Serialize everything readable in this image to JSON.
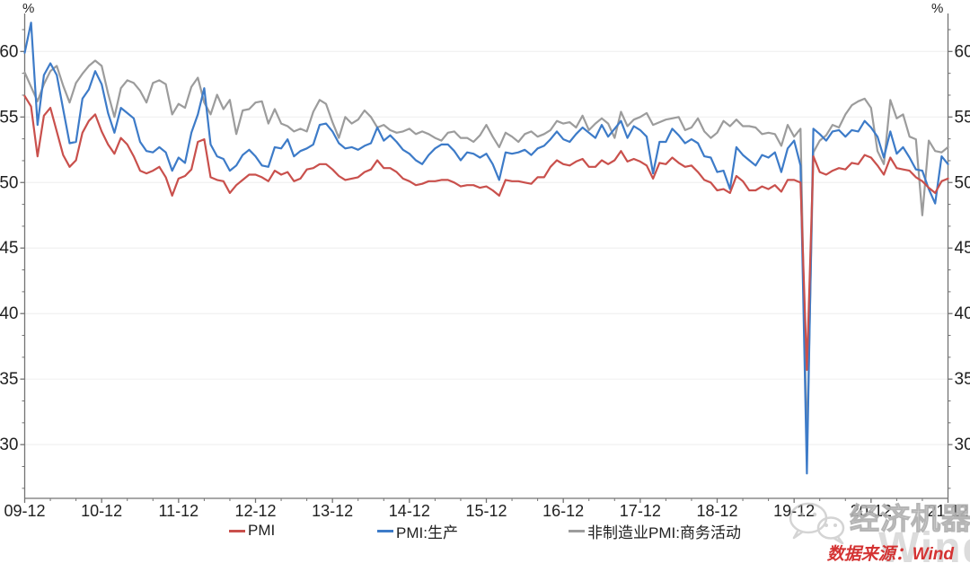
{
  "chart_data": {
    "type": "line",
    "unit": "%",
    "x_start": "2009-12",
    "x_end": "2021-12",
    "x_frequency": "monthly",
    "x_tick_labels": [
      "09-12",
      "10-12",
      "11-12",
      "12-12",
      "13-12",
      "14-12",
      "15-12",
      "16-12",
      "17-12",
      "18-12",
      "19-12",
      "20-12",
      "21-12"
    ],
    "y_ticks": [
      30,
      35,
      40,
      45,
      50,
      55,
      60
    ],
    "ylim": [
      25.9,
      62.9
    ],
    "grid": "horizontal-major",
    "legend_position": "bottom",
    "axis_color": "#737373",
    "grid_color": "#f0f0f0",
    "tick_label_color": "#1f1f1f",
    "series": [
      {
        "name": "PMI",
        "color": "#c9504c",
        "values": [
          56.6,
          55.8,
          52.0,
          55.1,
          55.7,
          53.9,
          52.1,
          51.2,
          51.7,
          53.8,
          54.7,
          55.2,
          53.9,
          52.9,
          52.2,
          53.4,
          52.9,
          52.0,
          50.9,
          50.7,
          50.9,
          51.2,
          50.4,
          49.0,
          50.3,
          50.5,
          51.0,
          53.1,
          53.3,
          50.4,
          50.2,
          50.1,
          49.2,
          49.8,
          50.2,
          50.6,
          50.6,
          50.4,
          50.1,
          50.9,
          50.6,
          50.8,
          50.1,
          50.3,
          51.0,
          51.1,
          51.4,
          51.4,
          51.0,
          50.5,
          50.2,
          50.3,
          50.4,
          50.8,
          51.0,
          51.7,
          51.1,
          51.1,
          50.8,
          50.3,
          50.1,
          49.8,
          49.9,
          50.1,
          50.1,
          50.2,
          50.2,
          50.0,
          49.7,
          49.8,
          49.8,
          49.6,
          49.7,
          49.4,
          49.0,
          50.2,
          50.1,
          50.1,
          50.0,
          49.9,
          50.4,
          50.4,
          51.2,
          51.7,
          51.4,
          51.3,
          51.6,
          51.8,
          51.2,
          51.2,
          51.7,
          51.4,
          51.7,
          52.4,
          51.6,
          51.8,
          51.6,
          51.3,
          50.3,
          51.5,
          51.4,
          51.9,
          51.5,
          51.2,
          51.3,
          50.8,
          50.2,
          50.0,
          49.4,
          49.5,
          49.2,
          50.5,
          50.1,
          49.4,
          49.4,
          49.7,
          49.5,
          49.8,
          49.3,
          50.2,
          50.2,
          50.0,
          35.7,
          52.0,
          50.8,
          50.6,
          50.9,
          51.1,
          51.0,
          51.5,
          51.4,
          52.1,
          51.9,
          51.3,
          50.6,
          51.9,
          51.1,
          51.0,
          50.9,
          50.4,
          50.1,
          49.6,
          49.2,
          50.1,
          50.3
        ]
      },
      {
        "name": "PMI:生产",
        "color": "#3d7bc8",
        "values": [
          59.9,
          62.2,
          54.4,
          58.2,
          59.1,
          58.2,
          55.6,
          53.0,
          53.1,
          56.4,
          57.1,
          58.5,
          57.5,
          55.3,
          53.8,
          55.7,
          55.3,
          54.9,
          53.1,
          52.4,
          52.3,
          52.7,
          52.3,
          50.9,
          51.9,
          51.5,
          53.8,
          55.2,
          57.2,
          52.9,
          52.0,
          51.8,
          50.9,
          51.3,
          52.1,
          52.5,
          52.0,
          51.3,
          51.2,
          52.7,
          52.6,
          53.3,
          52.0,
          52.4,
          52.6,
          52.9,
          54.4,
          54.5,
          53.9,
          53.0,
          52.6,
          52.7,
          52.5,
          52.8,
          53.0,
          54.2,
          53.2,
          53.6,
          53.1,
          52.5,
          52.2,
          51.7,
          51.4,
          52.1,
          52.6,
          52.9,
          52.9,
          52.4,
          51.7,
          52.3,
          52.2,
          51.9,
          52.2,
          51.4,
          50.2,
          52.3,
          52.2,
          52.3,
          52.5,
          52.1,
          52.6,
          52.8,
          53.3,
          53.9,
          53.3,
          53.1,
          53.7,
          54.2,
          53.8,
          53.4,
          54.4,
          53.5,
          54.1,
          54.7,
          53.4,
          54.3,
          54.0,
          53.5,
          50.7,
          53.1,
          53.1,
          54.1,
          53.6,
          53.0,
          53.3,
          53.0,
          52.0,
          51.9,
          50.8,
          50.9,
          49.5,
          52.7,
          52.1,
          51.7,
          51.3,
          52.1,
          51.9,
          52.3,
          50.8,
          52.6,
          53.2,
          51.3,
          27.8,
          54.1,
          53.7,
          53.2,
          53.9,
          54.0,
          53.5,
          54.0,
          53.9,
          54.7,
          54.2,
          53.5,
          51.9,
          53.9,
          52.2,
          52.7,
          51.9,
          51.0,
          50.9,
          49.5,
          48.4,
          52.0,
          51.4
        ]
      },
      {
        "name": "非制造业PMI:商务活动",
        "color": "#9c9c9c",
        "values": [
          58.4,
          57.3,
          56.2,
          57.5,
          58.5,
          58.9,
          57.4,
          56.1,
          57.6,
          58.3,
          58.9,
          59.3,
          58.9,
          56.8,
          55.0,
          57.2,
          57.8,
          57.6,
          57.0,
          56.1,
          57.6,
          57.8,
          57.5,
          55.2,
          56.0,
          55.7,
          57.3,
          58.0,
          56.1,
          55.2,
          56.7,
          55.6,
          56.3,
          53.7,
          55.5,
          55.6,
          56.1,
          56.2,
          54.5,
          55.6,
          54.5,
          54.3,
          53.9,
          54.1,
          53.9,
          55.4,
          56.3,
          56.0,
          54.6,
          53.4,
          55.0,
          54.5,
          54.8,
          55.5,
          55.0,
          54.2,
          54.4,
          54.0,
          53.8,
          53.9,
          54.1,
          53.7,
          53.9,
          53.7,
          53.4,
          53.2,
          53.8,
          53.9,
          53.4,
          53.4,
          53.1,
          53.6,
          54.4,
          53.5,
          52.7,
          53.8,
          53.5,
          53.1,
          53.7,
          53.9,
          53.5,
          53.7,
          54.0,
          54.7,
          54.5,
          54.6,
          54.2,
          55.1,
          54.0,
          54.5,
          54.9,
          54.5,
          53.4,
          55.4,
          54.3,
          54.8,
          55.0,
          55.3,
          54.4,
          54.6,
          54.8,
          54.9,
          55.0,
          54.0,
          54.2,
          54.9,
          53.9,
          53.4,
          53.8,
          54.7,
          54.3,
          54.8,
          54.3,
          54.3,
          54.2,
          53.7,
          53.8,
          53.7,
          52.8,
          54.4,
          53.5,
          54.1,
          29.6,
          52.3,
          53.2,
          53.6,
          54.4,
          54.2,
          55.2,
          55.9,
          56.2,
          56.4,
          55.7,
          52.4,
          51.4,
          56.3,
          54.9,
          55.2,
          53.5,
          53.3,
          47.5,
          53.2,
          52.4,
          52.3,
          52.7
        ]
      }
    ]
  },
  "watermark": {
    "brand_text": "经济机器",
    "big_text": "Wind"
  },
  "source_note": "数据来源：Wind"
}
